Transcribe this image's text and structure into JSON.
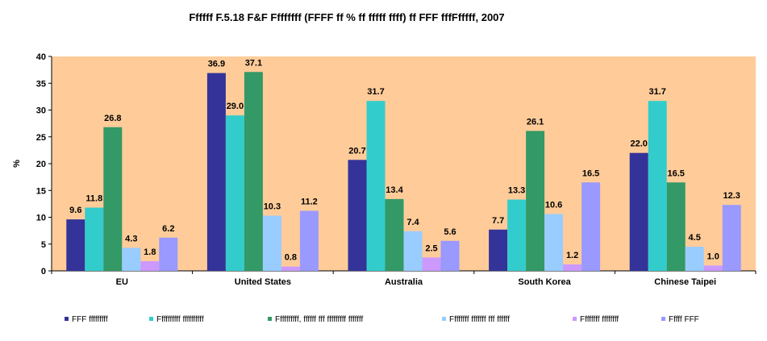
{
  "chart_data": {
    "type": "bar",
    "title": "Ffffff F.5.18 F&F Ffffffff (FFFF ff % ff fffff ffff) ff FFF fffFfffff, 2007",
    "ylabel": "%",
    "xlabel": "",
    "ylim": [
      0,
      40
    ],
    "yticks": [
      0,
      5,
      10,
      15,
      20,
      25,
      30,
      35,
      40
    ],
    "grid": false,
    "legend_position": "bottom",
    "background": "#ffcc99",
    "categories": [
      "EU",
      "United States",
      "Australia",
      "South Korea",
      "Chinese Taipei"
    ],
    "series": [
      {
        "name": "FFF fffffffff",
        "color": "#333399",
        "values": [
          9.6,
          36.9,
          20.7,
          7.7,
          22.0
        ],
        "labels": [
          "9.6",
          "36.9",
          "20.7",
          "7.7",
          "22.0"
        ]
      },
      {
        "name": "Ffffffffff ffffffffff",
        "color": "#33cccc",
        "values": [
          11.8,
          29.0,
          31.7,
          13.3,
          31.7
        ],
        "labels": [
          "11.8",
          "29.0",
          "31.7",
          "13.3",
          "31.7"
        ]
      },
      {
        "name": "Ffffffffff, ffffff fff fffffffff fffffff",
        "color": "#339966",
        "values": [
          26.8,
          37.1,
          13.4,
          26.1,
          16.5
        ],
        "labels": [
          "26.8",
          "37.1",
          "13.4",
          "26.1",
          "16.5"
        ]
      },
      {
        "name": "Ffffffff fffffff fff ffffff",
        "color": "#99ccff",
        "values": [
          4.3,
          10.3,
          7.4,
          10.6,
          4.5
        ],
        "labels": [
          "4.3",
          "10.3",
          "7.4",
          "10.6",
          "4.5"
        ]
      },
      {
        "name": "Ffffffff ffffffff",
        "color": "#cc99ff",
        "values": [
          1.8,
          0.8,
          2.5,
          1.2,
          1.0
        ],
        "labels": [
          "1.8",
          "0.8",
          "2.5",
          "1.2",
          "1.0"
        ]
      },
      {
        "name": "Fffff FFF",
        "color": "#9999ff",
        "values": [
          6.2,
          11.2,
          5.6,
          16.5,
          12.3
        ],
        "labels": [
          "6.2",
          "11.2",
          "5.6",
          "16.5",
          "12.3"
        ]
      }
    ]
  }
}
